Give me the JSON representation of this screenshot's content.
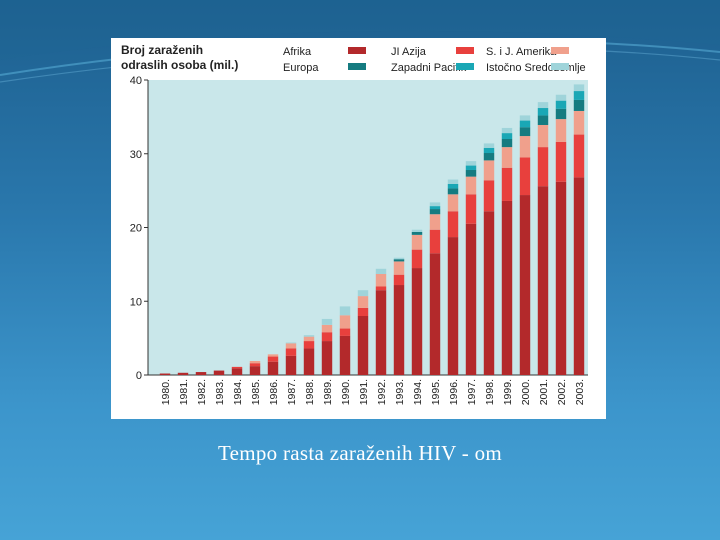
{
  "caption": "Tempo rasta zaraženih HIV - om",
  "chart_data": {
    "type": "bar",
    "stacked": true,
    "title": "Broj zaraženih odraslih osoba (mil.)",
    "title_lines": [
      "Broj zaraženih",
      "odraslih osoba (mil.)"
    ],
    "ylim": [
      0,
      40
    ],
    "yticks": [
      0,
      10,
      20,
      30,
      40
    ],
    "grid": false,
    "legend_position": "top",
    "categories": [
      "1980.",
      "1981.",
      "1982.",
      "1983.",
      "1984.",
      "1985.",
      "1986.",
      "1987.",
      "1988.",
      "1989.",
      "1990.",
      "1991.",
      "1992.",
      "1993.",
      "1994.",
      "1995.",
      "1996.",
      "1997.",
      "1998.",
      "1999.",
      "2000.",
      "2001.",
      "2002.",
      "2003."
    ],
    "series": [
      {
        "name": "Afrika",
        "color": "#b3292b",
        "values": [
          0.2,
          0.3,
          0.4,
          0.6,
          0.9,
          1.2,
          1.8,
          2.6,
          3.6,
          4.6,
          5.3,
          8.0,
          11.5,
          12.2,
          14.5,
          16.5,
          18.7,
          20.5,
          22.2,
          23.6,
          24.4,
          25.6,
          26.2,
          26.8
        ]
      },
      {
        "name": "JI Azija",
        "color": "#e8403d",
        "values": [
          0,
          0,
          0,
          0,
          0.2,
          0.4,
          0.7,
          1.0,
          1.0,
          1.2,
          1.0,
          1.1,
          0.5,
          1.4,
          2.5,
          3.2,
          3.5,
          4.0,
          4.2,
          4.5,
          5.1,
          5.3,
          5.4,
          5.8
        ]
      },
      {
        "name": "S. i J. Amerika",
        "color": "#f0a08c",
        "values": [
          0,
          0,
          0,
          0,
          0,
          0.3,
          0.3,
          0.7,
          0.6,
          1.0,
          1.8,
          1.6,
          1.7,
          1.8,
          2.0,
          2.1,
          2.3,
          2.4,
          2.7,
          2.8,
          2.9,
          3.0,
          3.1,
          3.2
        ]
      },
      {
        "name": "Europa",
        "color": "#157b80",
        "values": [
          0,
          0,
          0,
          0,
          0,
          0,
          0,
          0,
          0,
          0,
          0,
          0,
          0,
          0.3,
          0.4,
          0.7,
          0.8,
          0.9,
          1.0,
          1.1,
          1.2,
          1.3,
          1.4,
          1.5
        ]
      },
      {
        "name": "Zapadni Pacifik",
        "color": "#1aa7b5",
        "values": [
          0,
          0,
          0,
          0,
          0,
          0,
          0,
          0,
          0,
          0,
          0,
          0,
          0,
          0,
          0,
          0.4,
          0.6,
          0.6,
          0.7,
          0.8,
          0.9,
          1.0,
          1.1,
          1.2
        ]
      },
      {
        "name": "Istočno Sredozemlje",
        "color": "#9fd4da",
        "values": [
          0,
          0,
          0,
          0,
          0,
          0,
          0,
          0.1,
          0.2,
          0.8,
          1.2,
          0.8,
          0.7,
          0.2,
          0.3,
          0.5,
          0.6,
          0.6,
          0.6,
          0.7,
          0.7,
          0.8,
          0.8,
          0.9
        ]
      }
    ],
    "palette": {
      "plot_background": "#c9e7ea",
      "axis_color": "#333333",
      "text_color": "#222222"
    }
  }
}
